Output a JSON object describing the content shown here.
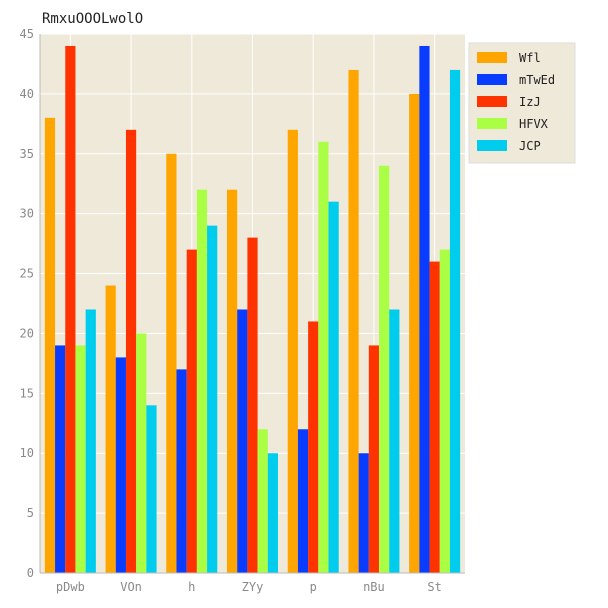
{
  "chart_data": {
    "type": "bar",
    "title": "RmxuOOOLwolO",
    "xlabel": "",
    "ylabel": "",
    "categories": [
      "pDwb",
      "VOn",
      "h",
      "ZYy",
      "p",
      "nBu",
      "St"
    ],
    "series": [
      {
        "name": "Wfl",
        "color": "#ffa500",
        "values": [
          38,
          24,
          35,
          32,
          37,
          42,
          40
        ]
      },
      {
        "name": "mTwEd",
        "color": "#0a3cff",
        "values": [
          19,
          18,
          17,
          22,
          12,
          10,
          44
        ]
      },
      {
        "name": "IzJ",
        "color": "#ff3300",
        "values": [
          44,
          37,
          27,
          28,
          21,
          19,
          26
        ]
      },
      {
        "name": "HFVX",
        "color": "#aaff44",
        "values": [
          19,
          20,
          32,
          12,
          36,
          34,
          27
        ]
      },
      {
        "name": "JCP",
        "color": "#00ccee",
        "values": [
          22,
          14,
          29,
          10,
          31,
          22,
          42
        ]
      }
    ],
    "ylim": [
      0,
      45
    ],
    "yticks": [
      0,
      5,
      10,
      15,
      20,
      25,
      30,
      35,
      40,
      45
    ],
    "grid": true,
    "legend_position": "top-right",
    "background": "#efe9d9"
  }
}
